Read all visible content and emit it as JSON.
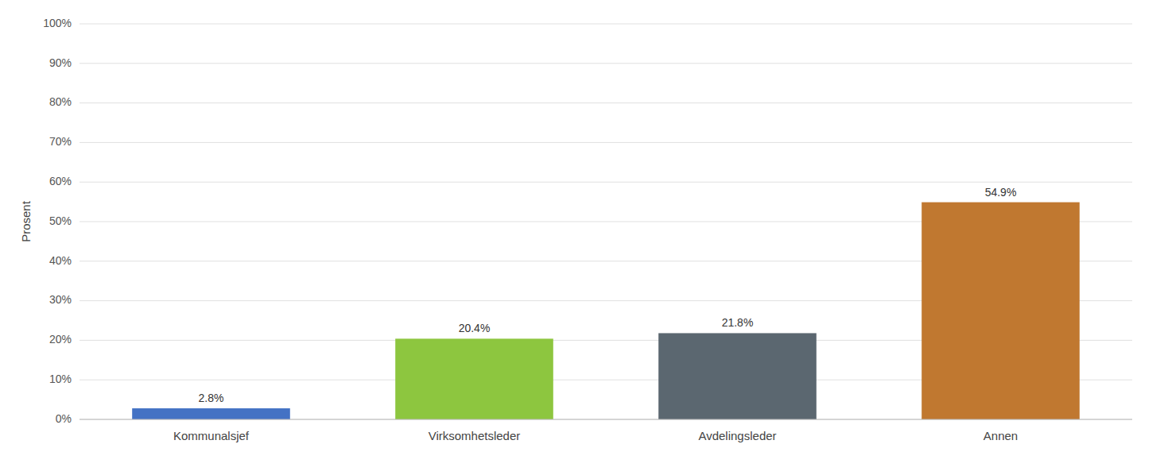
{
  "chart_data": {
    "type": "bar",
    "categories": [
      "Kommunalsjef",
      "Virksomhetsleder",
      "Avdelingsleder",
      "Annen"
    ],
    "values": [
      2.8,
      20.4,
      21.8,
      54.9
    ],
    "value_labels": [
      "2.8%",
      "20.4%",
      "21.8%",
      "54.9%"
    ],
    "data_labels": true,
    "colors": [
      "#4472C4",
      "#8DC63F",
      "#5B6770",
      "#C07830"
    ],
    "y_label": "Prosent",
    "ylim": [
      0,
      100
    ],
    "yticks": [
      {
        "value": 0,
        "label": "0%"
      },
      {
        "value": 10,
        "label": "10%"
      },
      {
        "value": 20,
        "label": "20%"
      },
      {
        "value": 30,
        "label": "30%"
      },
      {
        "value": 40,
        "label": "40%"
      },
      {
        "value": 50,
        "label": "50%"
      },
      {
        "value": 60,
        "label": "60%"
      },
      {
        "value": 70,
        "label": "70%"
      },
      {
        "value": 80,
        "label": "80%"
      },
      {
        "value": 90,
        "label": "90%"
      },
      {
        "value": 100,
        "label": "100%"
      }
    ],
    "grid": true
  }
}
